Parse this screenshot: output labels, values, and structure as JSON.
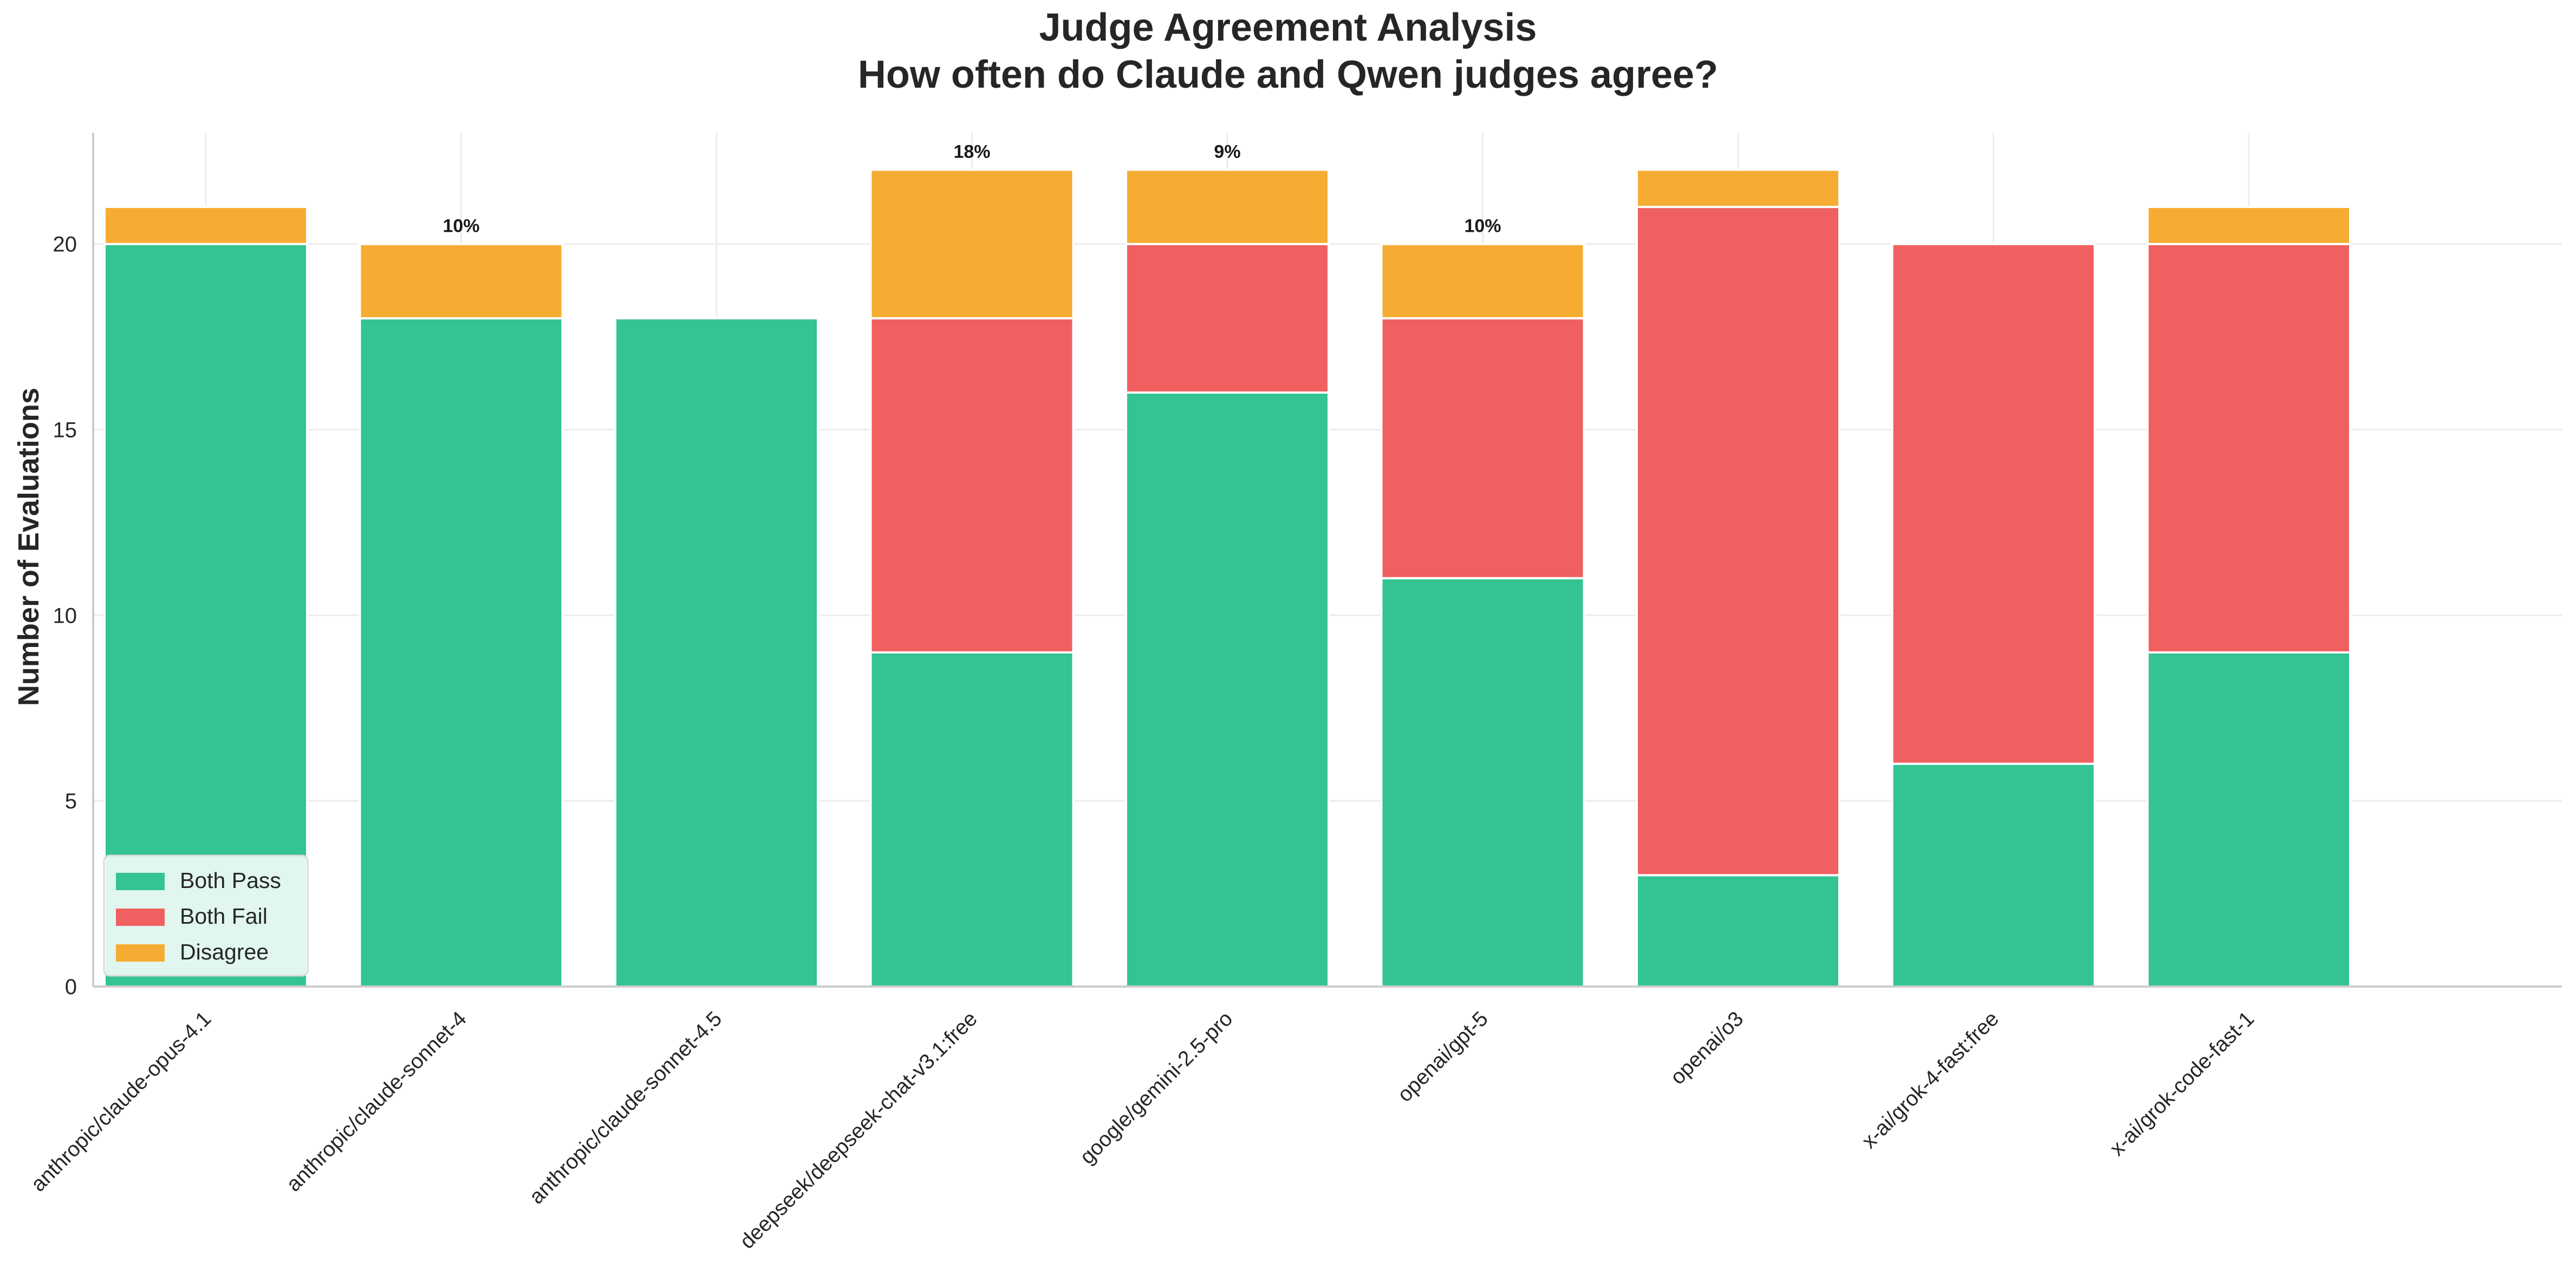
{
  "chart_data": {
    "type": "bar",
    "stacked": true,
    "title": "Judge Agreement Analysis\nHow often do Claude and Qwen judges agree?",
    "title_lines": [
      "Judge Agreement Analysis",
      "How often do Claude and Qwen judges agree?"
    ],
    "xlabel": "",
    "ylabel": "Number of Evaluations",
    "ylim": [
      0,
      23
    ],
    "yticks": [
      0,
      5,
      10,
      15,
      20
    ],
    "grid": true,
    "legend_position": "lower-left",
    "categories": [
      "anthropic/claude-opus-4.1",
      "anthropic/claude-sonnet-4",
      "anthropic/claude-sonnet-4.5",
      "deepseek/deepseek-chat-v3.1:free",
      "google/gemini-2.5-pro",
      "openai/gpt-5",
      "openai/o3",
      "x-ai/grok-4-fast:free",
      "x-ai/grok-code-fast-1"
    ],
    "series": [
      {
        "name": "Both Pass",
        "color": "#34C393",
        "values": [
          20,
          18,
          18,
          9,
          16,
          11,
          3,
          6,
          9
        ]
      },
      {
        "name": "Both Fail",
        "color": "#F06060",
        "values": [
          0,
          0,
          0,
          9,
          4,
          7,
          18,
          14,
          11
        ]
      },
      {
        "name": "Disagree",
        "color": "#F6AC32",
        "values": [
          1,
          2,
          0,
          4,
          2,
          2,
          1,
          0,
          1
        ]
      }
    ],
    "annotations": [
      "",
      "10%",
      "",
      "18%",
      "9%",
      "10%",
      "",
      "",
      ""
    ]
  }
}
